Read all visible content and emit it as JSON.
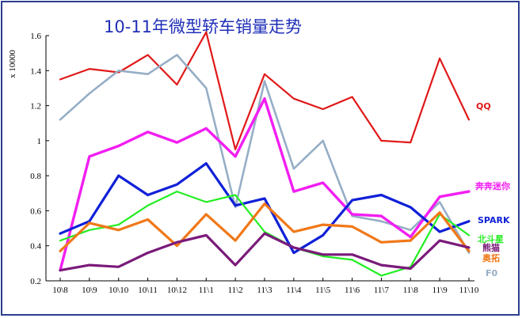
{
  "chart_data": {
    "type": "line",
    "title": "10-11年微型轿车销量走势",
    "ylabel": "x 10000",
    "xlabel": "",
    "ylim": [
      0.2,
      1.6
    ],
    "yticks": [
      "0.2",
      "0.4",
      "0.6",
      "0.8",
      "1",
      "1.2",
      "1.4",
      "1.6"
    ],
    "categories": [
      "10\\8",
      "10\\9",
      "10\\10",
      "10\\11",
      "10\\12",
      "11\\1",
      "11\\2",
      "11\\3",
      "11\\4",
      "11\\5",
      "11\\6",
      "11\\7",
      "11\\8",
      "11\\9",
      "11\\10"
    ],
    "grid": false,
    "series": [
      {
        "name": "QQ",
        "color": "#e01818",
        "width": 2.2,
        "values": [
          1.35,
          1.41,
          1.39,
          1.49,
          1.32,
          1.62,
          0.95,
          1.38,
          1.24,
          1.18,
          1.25,
          1.0,
          0.99,
          1.47,
          1.12
        ]
      },
      {
        "name": "F0",
        "color": "#96aec6",
        "width": 2.6,
        "values": [
          1.12,
          1.27,
          1.4,
          1.38,
          1.49,
          1.3,
          0.62,
          1.34,
          0.84,
          1.0,
          0.57,
          0.54,
          0.49,
          0.65,
          0.36
        ]
      },
      {
        "name": "奔奔迷你",
        "color": "#f21ef2",
        "width": 3.4,
        "values": [
          0.26,
          0.91,
          0.97,
          1.05,
          0.99,
          1.07,
          0.91,
          1.24,
          0.71,
          0.76,
          0.58,
          0.57,
          0.45,
          0.68,
          0.71
        ]
      },
      {
        "name": "SPARK",
        "color": "#1020d8",
        "width": 3.2,
        "values": [
          0.47,
          0.54,
          0.8,
          0.69,
          0.75,
          0.87,
          0.63,
          0.67,
          0.36,
          0.46,
          0.66,
          0.69,
          0.62,
          0.48,
          0.54
        ]
      },
      {
        "name": "北斗星",
        "color": "#22ee22",
        "width": 2.2,
        "values": [
          0.43,
          0.49,
          0.52,
          0.63,
          0.71,
          0.65,
          0.69,
          0.48,
          0.39,
          0.34,
          0.32,
          0.23,
          0.28,
          0.58,
          0.46
        ]
      },
      {
        "name": "奥拓",
        "color": "#f07818",
        "width": 3.2,
        "values": [
          0.37,
          0.53,
          0.49,
          0.55,
          0.4,
          0.58,
          0.43,
          0.64,
          0.48,
          0.52,
          0.51,
          0.42,
          0.43,
          0.59,
          0.37
        ]
      },
      {
        "name": "熊猫",
        "color": "#7a1a7a",
        "width": 3.2,
        "values": [
          0.26,
          0.29,
          0.28,
          0.36,
          0.42,
          0.46,
          0.29,
          0.47,
          0.39,
          0.35,
          0.35,
          0.29,
          0.27,
          0.43,
          0.39
        ]
      }
    ],
    "labels_order": [
      "QQ",
      "奔奔迷你",
      "SPARK",
      "北斗星",
      "熊猫",
      "奥拓",
      "F0"
    ]
  }
}
